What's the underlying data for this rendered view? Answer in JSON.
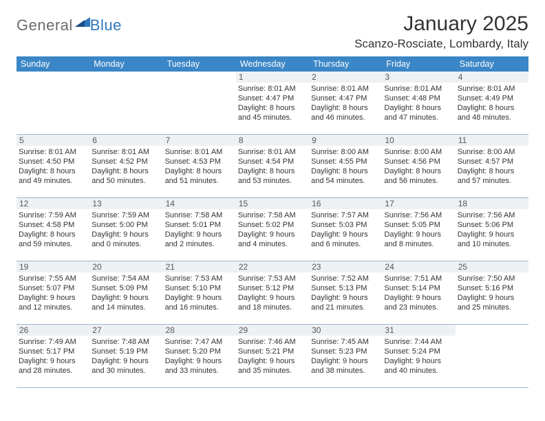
{
  "logo": {
    "text1": "General",
    "text2": "Blue"
  },
  "title": "January 2025",
  "location": "Scanzo-Rosciate, Lombardy, Italy",
  "colors": {
    "header_bg": "#3b86c6",
    "header_text": "#ffffff",
    "daynum_bg": "#eef1f4",
    "week_border": "#9fb5c8",
    "logo_gray": "#6b6b6b",
    "logo_blue": "#2f76bb"
  },
  "dow": [
    "Sunday",
    "Monday",
    "Tuesday",
    "Wednesday",
    "Thursday",
    "Friday",
    "Saturday"
  ],
  "weeks": [
    [
      null,
      null,
      null,
      {
        "d": "1",
        "sr": "8:01 AM",
        "ss": "4:47 PM",
        "dl1": "Daylight: 8 hours",
        "dl2": "and 45 minutes."
      },
      {
        "d": "2",
        "sr": "8:01 AM",
        "ss": "4:47 PM",
        "dl1": "Daylight: 8 hours",
        "dl2": "and 46 minutes."
      },
      {
        "d": "3",
        "sr": "8:01 AM",
        "ss": "4:48 PM",
        "dl1": "Daylight: 8 hours",
        "dl2": "and 47 minutes."
      },
      {
        "d": "4",
        "sr": "8:01 AM",
        "ss": "4:49 PM",
        "dl1": "Daylight: 8 hours",
        "dl2": "and 48 minutes."
      }
    ],
    [
      {
        "d": "5",
        "sr": "8:01 AM",
        "ss": "4:50 PM",
        "dl1": "Daylight: 8 hours",
        "dl2": "and 49 minutes."
      },
      {
        "d": "6",
        "sr": "8:01 AM",
        "ss": "4:52 PM",
        "dl1": "Daylight: 8 hours",
        "dl2": "and 50 minutes."
      },
      {
        "d": "7",
        "sr": "8:01 AM",
        "ss": "4:53 PM",
        "dl1": "Daylight: 8 hours",
        "dl2": "and 51 minutes."
      },
      {
        "d": "8",
        "sr": "8:01 AM",
        "ss": "4:54 PM",
        "dl1": "Daylight: 8 hours",
        "dl2": "and 53 minutes."
      },
      {
        "d": "9",
        "sr": "8:00 AM",
        "ss": "4:55 PM",
        "dl1": "Daylight: 8 hours",
        "dl2": "and 54 minutes."
      },
      {
        "d": "10",
        "sr": "8:00 AM",
        "ss": "4:56 PM",
        "dl1": "Daylight: 8 hours",
        "dl2": "and 56 minutes."
      },
      {
        "d": "11",
        "sr": "8:00 AM",
        "ss": "4:57 PM",
        "dl1": "Daylight: 8 hours",
        "dl2": "and 57 minutes."
      }
    ],
    [
      {
        "d": "12",
        "sr": "7:59 AM",
        "ss": "4:58 PM",
        "dl1": "Daylight: 8 hours",
        "dl2": "and 59 minutes."
      },
      {
        "d": "13",
        "sr": "7:59 AM",
        "ss": "5:00 PM",
        "dl1": "Daylight: 9 hours",
        "dl2": "and 0 minutes."
      },
      {
        "d": "14",
        "sr": "7:58 AM",
        "ss": "5:01 PM",
        "dl1": "Daylight: 9 hours",
        "dl2": "and 2 minutes."
      },
      {
        "d": "15",
        "sr": "7:58 AM",
        "ss": "5:02 PM",
        "dl1": "Daylight: 9 hours",
        "dl2": "and 4 minutes."
      },
      {
        "d": "16",
        "sr": "7:57 AM",
        "ss": "5:03 PM",
        "dl1": "Daylight: 9 hours",
        "dl2": "and 6 minutes."
      },
      {
        "d": "17",
        "sr": "7:56 AM",
        "ss": "5:05 PM",
        "dl1": "Daylight: 9 hours",
        "dl2": "and 8 minutes."
      },
      {
        "d": "18",
        "sr": "7:56 AM",
        "ss": "5:06 PM",
        "dl1": "Daylight: 9 hours",
        "dl2": "and 10 minutes."
      }
    ],
    [
      {
        "d": "19",
        "sr": "7:55 AM",
        "ss": "5:07 PM",
        "dl1": "Daylight: 9 hours",
        "dl2": "and 12 minutes."
      },
      {
        "d": "20",
        "sr": "7:54 AM",
        "ss": "5:09 PM",
        "dl1": "Daylight: 9 hours",
        "dl2": "and 14 minutes."
      },
      {
        "d": "21",
        "sr": "7:53 AM",
        "ss": "5:10 PM",
        "dl1": "Daylight: 9 hours",
        "dl2": "and 16 minutes."
      },
      {
        "d": "22",
        "sr": "7:53 AM",
        "ss": "5:12 PM",
        "dl1": "Daylight: 9 hours",
        "dl2": "and 18 minutes."
      },
      {
        "d": "23",
        "sr": "7:52 AM",
        "ss": "5:13 PM",
        "dl1": "Daylight: 9 hours",
        "dl2": "and 21 minutes."
      },
      {
        "d": "24",
        "sr": "7:51 AM",
        "ss": "5:14 PM",
        "dl1": "Daylight: 9 hours",
        "dl2": "and 23 minutes."
      },
      {
        "d": "25",
        "sr": "7:50 AM",
        "ss": "5:16 PM",
        "dl1": "Daylight: 9 hours",
        "dl2": "and 25 minutes."
      }
    ],
    [
      {
        "d": "26",
        "sr": "7:49 AM",
        "ss": "5:17 PM",
        "dl1": "Daylight: 9 hours",
        "dl2": "and 28 minutes."
      },
      {
        "d": "27",
        "sr": "7:48 AM",
        "ss": "5:19 PM",
        "dl1": "Daylight: 9 hours",
        "dl2": "and 30 minutes."
      },
      {
        "d": "28",
        "sr": "7:47 AM",
        "ss": "5:20 PM",
        "dl1": "Daylight: 9 hours",
        "dl2": "and 33 minutes."
      },
      {
        "d": "29",
        "sr": "7:46 AM",
        "ss": "5:21 PM",
        "dl1": "Daylight: 9 hours",
        "dl2": "and 35 minutes."
      },
      {
        "d": "30",
        "sr": "7:45 AM",
        "ss": "5:23 PM",
        "dl1": "Daylight: 9 hours",
        "dl2": "and 38 minutes."
      },
      {
        "d": "31",
        "sr": "7:44 AM",
        "ss": "5:24 PM",
        "dl1": "Daylight: 9 hours",
        "dl2": "and 40 minutes."
      },
      null
    ]
  ],
  "labels": {
    "sunrise": "Sunrise: ",
    "sunset": "Sunset: "
  }
}
